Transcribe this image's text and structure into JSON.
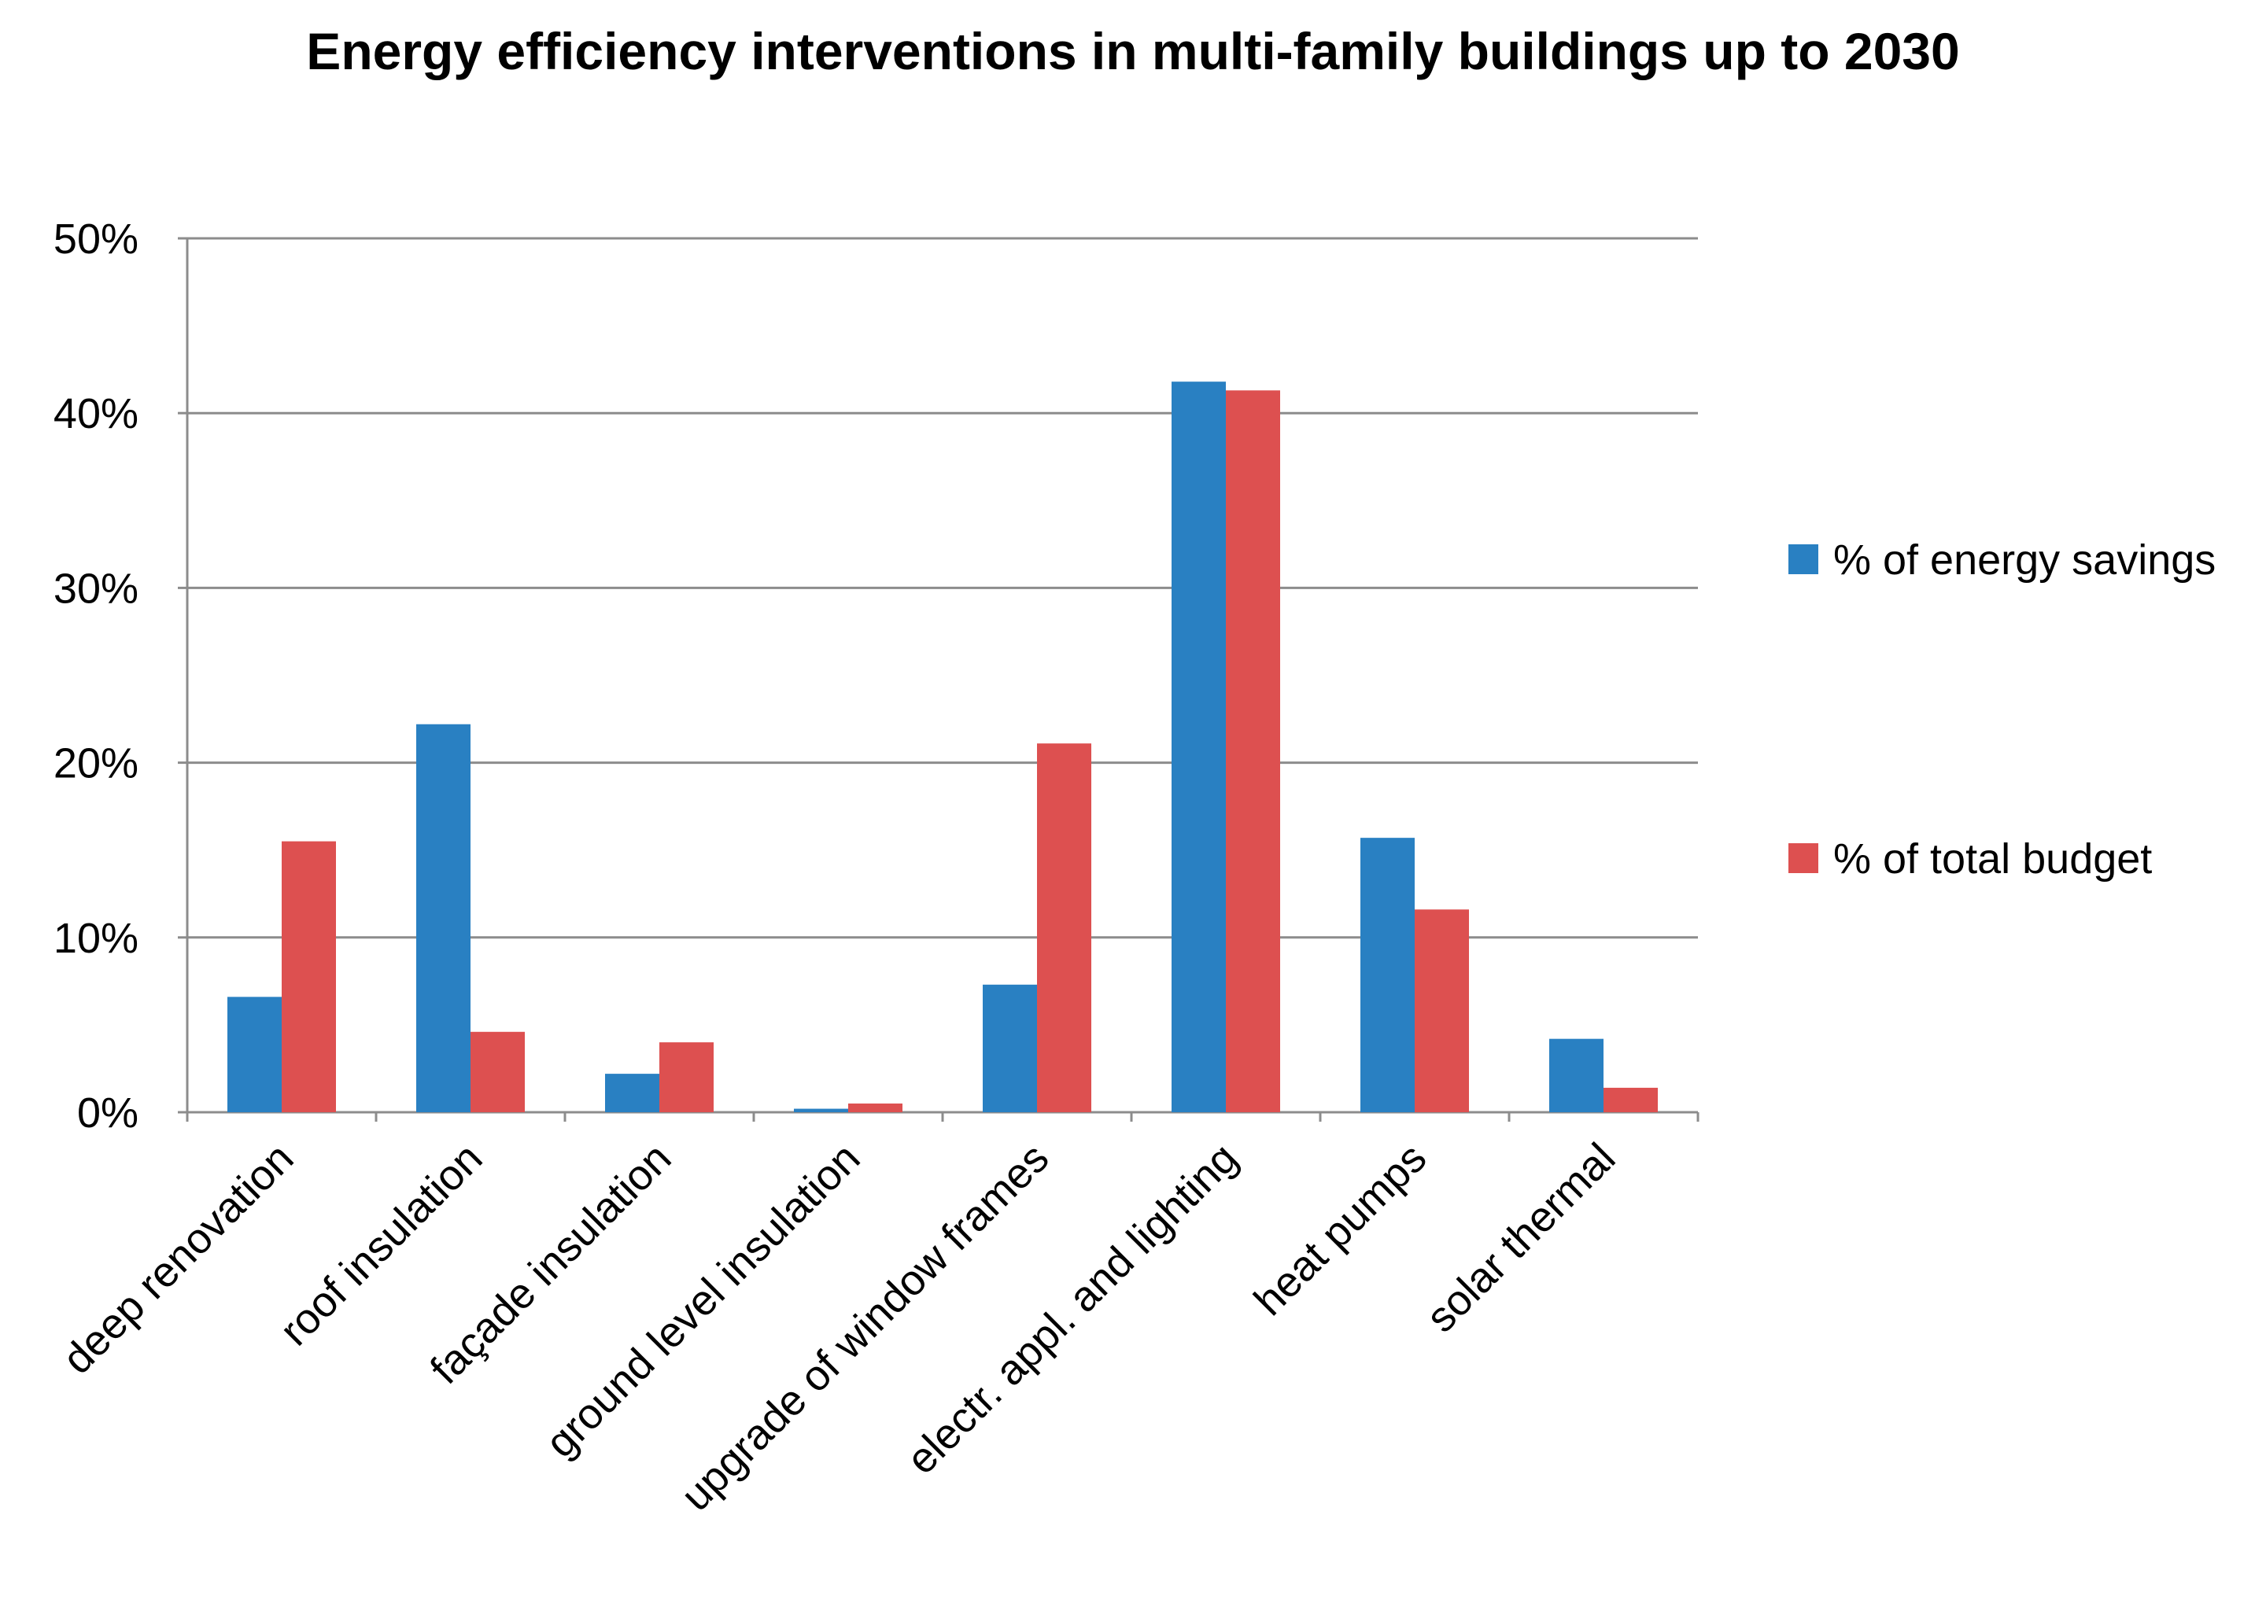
{
  "chart_data": {
    "type": "bar",
    "title": "Energy efficiency interventions in multi-family buildings up to 2030",
    "xlabel": "",
    "ylabel": "",
    "categories": [
      "deep renovation",
      "roof insulation",
      "façade insulation",
      "ground level insulation",
      "upgrade of window frames",
      "electr. appl. and lighting",
      "heat pumps",
      "solar thermal"
    ],
    "series": [
      {
        "name": "% of energy savings",
        "color": "#2980C2",
        "values": [
          6.6,
          22.2,
          2.2,
          0.2,
          7.3,
          41.8,
          15.7,
          4.2
        ]
      },
      {
        "name": "% of total budget",
        "color": "#DD5050",
        "values": [
          15.5,
          4.6,
          4.0,
          0.5,
          21.1,
          41.3,
          11.6,
          1.4
        ]
      }
    ],
    "ylim": [
      0,
      50
    ],
    "yticks": [
      0,
      10,
      20,
      30,
      40,
      50
    ],
    "ytick_labels": [
      "0%",
      "10%",
      "20%",
      "30%",
      "40%",
      "50%"
    ],
    "grid": true,
    "legend_position": "right"
  }
}
